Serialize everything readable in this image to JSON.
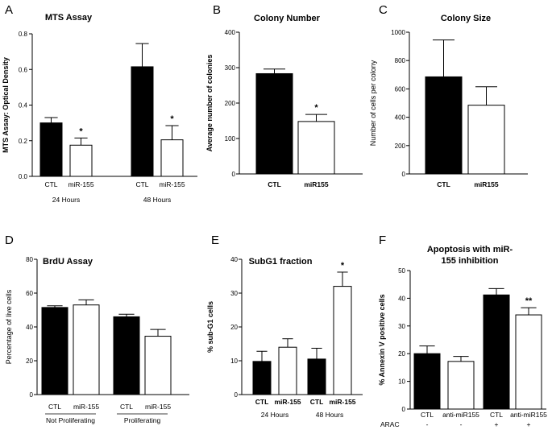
{
  "figure": {
    "fill_colors": {
      "dark": "#000000",
      "light": "#ffffff"
    }
  },
  "chart_data": [
    {
      "panel": "A",
      "type": "bar",
      "title": "MTS Assay",
      "ylabel": "MTS Assay: Optical Density",
      "ylabel_bold": true,
      "ylim": [
        0,
        0.8
      ],
      "yticks": [
        0.0,
        0.2,
        0.4,
        0.6,
        0.8
      ],
      "ytick_labels": [
        "0.0",
        "0.2",
        "0.4",
        "0.6",
        "0.8"
      ],
      "categories": [
        "CTL",
        "miR-155",
        "CTL",
        "miR-155"
      ],
      "values": [
        0.3,
        0.175,
        0.615,
        0.205
      ],
      "errors": [
        0.03,
        0.04,
        0.13,
        0.08
      ],
      "fills": [
        "dark",
        "light",
        "dark",
        "light"
      ],
      "significance": [
        "",
        "*",
        "",
        "*"
      ],
      "groups": [
        {
          "label": "24 Hours",
          "span": [
            0,
            1
          ]
        },
        {
          "label": "48 Hours",
          "span": [
            2,
            3
          ]
        }
      ]
    },
    {
      "panel": "B",
      "type": "bar",
      "title": "Colony Number",
      "ylabel": "Average number of colonies",
      "ylabel_bold": true,
      "ylim": [
        0,
        400
      ],
      "yticks": [
        0,
        100,
        200,
        300,
        400
      ],
      "ytick_labels": [
        "0",
        "100",
        "200",
        "300",
        "400"
      ],
      "categories": [
        "CTL",
        "miR155"
      ],
      "values": [
        283,
        148
      ],
      "errors": [
        13,
        20
      ],
      "fills": [
        "dark",
        "light"
      ],
      "significance": [
        "",
        "*"
      ],
      "category_bold": true
    },
    {
      "panel": "C",
      "type": "bar",
      "title": "Colony Size",
      "ylabel": "Number of cells per colony",
      "ylabel_bold": false,
      "ylim": [
        0,
        1000
      ],
      "yticks": [
        0,
        200,
        400,
        600,
        800,
        1000
      ],
      "ytick_labels": [
        "0",
        "200",
        "400",
        "600",
        "800",
        "1000"
      ],
      "categories": [
        "CTL",
        "miR155"
      ],
      "values": [
        685,
        485
      ],
      "errors": [
        260,
        130
      ],
      "fills": [
        "dark",
        "light"
      ],
      "significance": [
        "",
        ""
      ],
      "category_bold": true
    },
    {
      "panel": "D",
      "type": "bar",
      "title": "BrdU Assay",
      "ylabel": "Percentage of live cells",
      "ylabel_bold": false,
      "ylim": [
        0,
        80
      ],
      "yticks": [
        0,
        20,
        40,
        60,
        80
      ],
      "ytick_labels": [
        "0",
        "20",
        "40",
        "60",
        "80"
      ],
      "categories": [
        "CTL",
        "miR-155",
        "CTL",
        "miR-155"
      ],
      "values": [
        51.5,
        53,
        46,
        34.5
      ],
      "errors": [
        1,
        3,
        1.5,
        4
      ],
      "fills": [
        "dark",
        "light",
        "dark",
        "light"
      ],
      "significance": [
        "",
        "",
        "",
        ""
      ],
      "groups": [
        {
          "label": "Not Proliferating",
          "span": [
            0,
            1
          ]
        },
        {
          "label": "Proliferating",
          "span": [
            2,
            3
          ]
        }
      ]
    },
    {
      "panel": "E",
      "type": "bar",
      "title": "SubG1 fraction",
      "ylabel": "% sub-G1 cells",
      "ylabel_bold": true,
      "ylim": [
        0,
        40
      ],
      "yticks": [
        0,
        10,
        20,
        30,
        40
      ],
      "ytick_labels": [
        "0",
        "10",
        "20",
        "30",
        "40"
      ],
      "categories": [
        "CTL",
        "miR-155",
        "CTL",
        "miR-155"
      ],
      "values": [
        9.8,
        14,
        10.5,
        32
      ],
      "errors": [
        3,
        2.5,
        3.2,
        4.2
      ],
      "fills": [
        "dark",
        "light",
        "dark",
        "light"
      ],
      "significance": [
        "",
        "",
        "",
        "*"
      ],
      "category_bold": true,
      "groups": [
        {
          "label": "24 Hours",
          "span": [
            0,
            1
          ]
        },
        {
          "label": "48 Hours",
          "span": [
            2,
            3
          ]
        }
      ]
    },
    {
      "panel": "F",
      "type": "bar",
      "title": "Apoptosis with miR-155 inhibition",
      "title_lines": [
        "Apoptosis with miR-",
        "155 inhibition"
      ],
      "ylabel": "% Annexin V positive cells",
      "ylabel_bold": true,
      "ylim": [
        0,
        50
      ],
      "yticks": [
        0,
        10,
        20,
        30,
        40,
        50
      ],
      "ytick_labels": [
        "0",
        "10",
        "20",
        "30",
        "40",
        "50"
      ],
      "categories": [
        "CTL",
        "anti-miR155",
        "CTL",
        "anti-miR155"
      ],
      "values": [
        20,
        17.2,
        41.2,
        34
      ],
      "errors": [
        2.8,
        1.8,
        2.3,
        2.6
      ],
      "fills": [
        "dark",
        "light",
        "dark",
        "light"
      ],
      "significance": [
        "",
        "",
        "",
        "**"
      ],
      "condition": {
        "label": "ARAC",
        "values": [
          "-",
          "-",
          "+",
          "+"
        ]
      }
    }
  ]
}
